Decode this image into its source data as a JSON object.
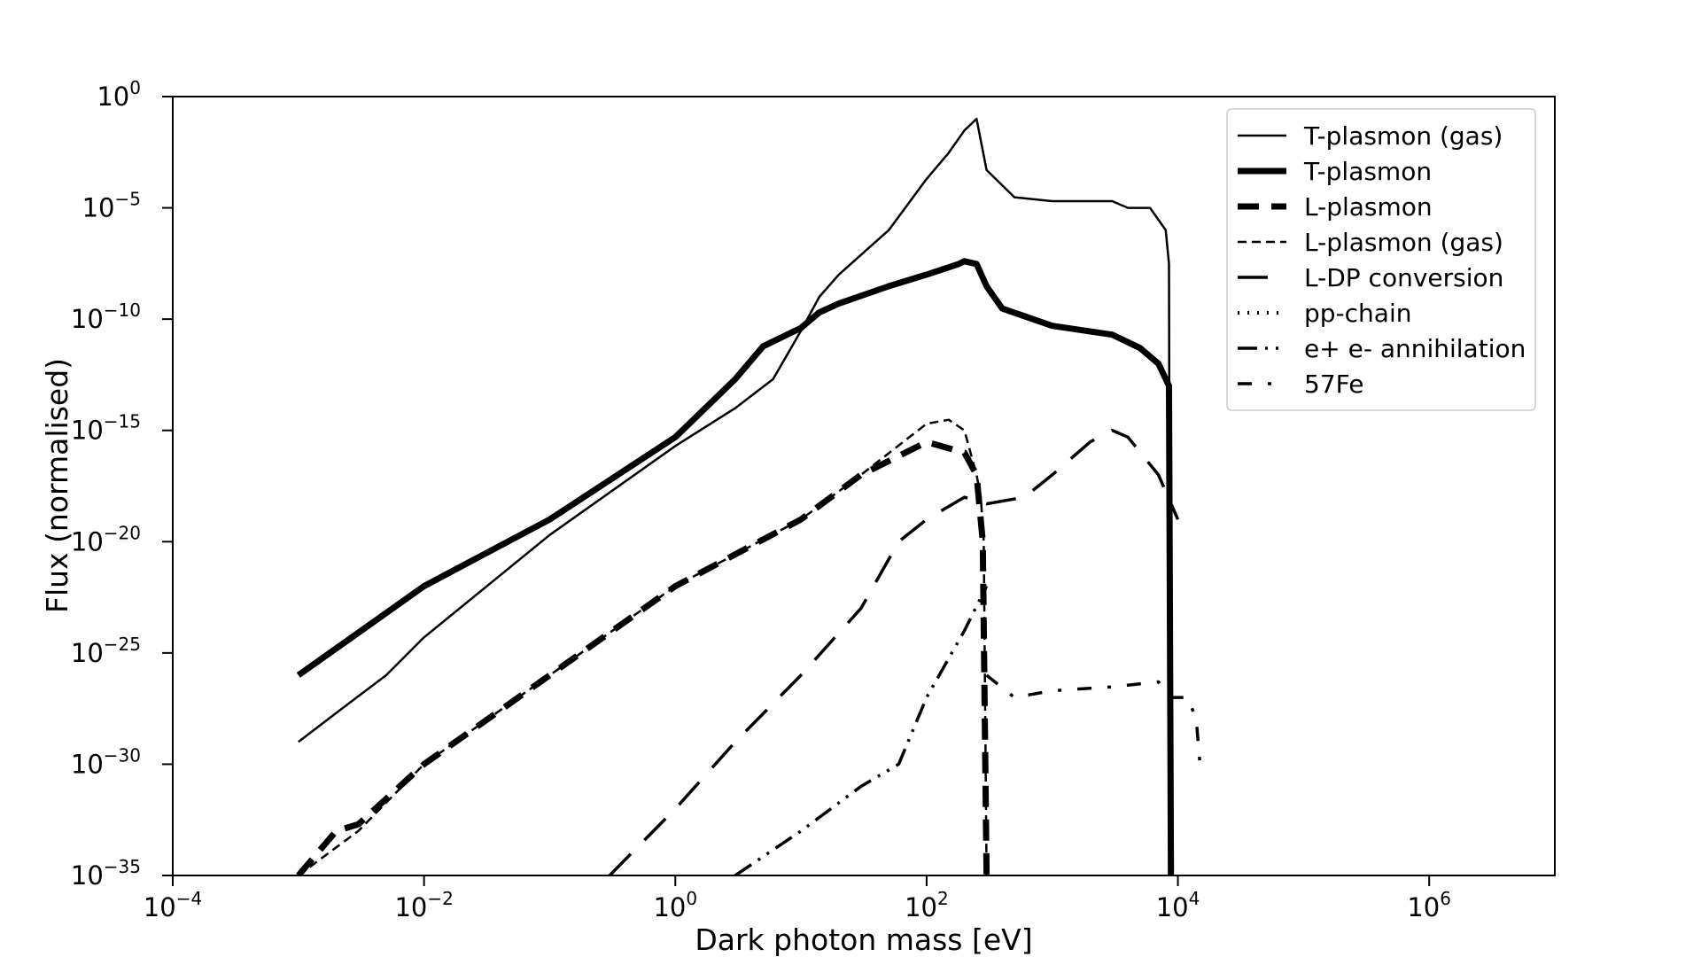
{
  "chart_data": {
    "type": "line",
    "xlabel": "Dark photon mass [eV]",
    "ylabel": "Flux (normalised)",
    "xscale": "log",
    "yscale": "log",
    "xlim": [
      0.0001,
      10000000
    ],
    "ylim": [
      1e-35,
      1
    ],
    "x_ticks": [
      {
        "base": "10",
        "exp": "−4",
        "value": 0.0001
      },
      {
        "base": "10",
        "exp": "−2",
        "value": 0.01
      },
      {
        "base": "10",
        "exp": "0",
        "value": 1
      },
      {
        "base": "10",
        "exp": "2",
        "value": 100
      },
      {
        "base": "10",
        "exp": "4",
        "value": 10000
      },
      {
        "base": "10",
        "exp": "6",
        "value": 1000000
      }
    ],
    "y_ticks": [
      {
        "base": "10",
        "exp": "0",
        "value": 1
      },
      {
        "base": "10",
        "exp": "−5",
        "value": 1e-05
      },
      {
        "base": "10",
        "exp": "−10",
        "value": 1e-10
      },
      {
        "base": "10",
        "exp": "−15",
        "value": 1e-15
      },
      {
        "base": "10",
        "exp": "−20",
        "value": 1e-20
      },
      {
        "base": "10",
        "exp": "−25",
        "value": 1e-25
      },
      {
        "base": "10",
        "exp": "−30",
        "value": 1e-30
      },
      {
        "base": "10",
        "exp": "−35",
        "value": 1e-35
      }
    ],
    "legend_position": "top-right",
    "grid": false,
    "series": [
      {
        "name": "T-plasmon (gas)",
        "color": "#000000",
        "line_style": "solid",
        "line_width": 2.5,
        "points": [
          [
            0.001,
            1e-29
          ],
          [
            0.002,
            2e-28
          ],
          [
            0.005,
            1e-26
          ],
          [
            0.01,
            5e-25
          ],
          [
            0.1,
            2e-20
          ],
          [
            1,
            2e-16
          ],
          [
            3,
            1e-14
          ],
          [
            6,
            2e-13
          ],
          [
            10,
            3e-11
          ],
          [
            14,
            1e-09
          ],
          [
            20,
            1e-08
          ],
          [
            50,
            1e-06
          ],
          [
            100,
            0.0002
          ],
          [
            150,
            0.003
          ],
          [
            200,
            0.03
          ],
          [
            250,
            0.1
          ],
          [
            300,
            0.0005
          ],
          [
            500,
            3e-05
          ],
          [
            1000,
            2e-05
          ],
          [
            3000,
            2e-05
          ],
          [
            4000,
            1e-05
          ],
          [
            6000,
            1e-05
          ],
          [
            8000,
            1e-06
          ],
          [
            8500,
            3e-08
          ],
          [
            8700,
            1e-35
          ]
        ]
      },
      {
        "name": "T-plasmon",
        "color": "#000000",
        "line_style": "solid",
        "line_width": 7,
        "points": [
          [
            0.001,
            1e-26
          ],
          [
            0.01,
            1e-22
          ],
          [
            0.1,
            1e-19
          ],
          [
            1,
            5e-16
          ],
          [
            3,
            2e-13
          ],
          [
            5,
            6e-12
          ],
          [
            10,
            4e-11
          ],
          [
            14,
            2e-10
          ],
          [
            20,
            5e-10
          ],
          [
            50,
            3e-09
          ],
          [
            100,
            1e-08
          ],
          [
            180,
            3e-08
          ],
          [
            200,
            4e-08
          ],
          [
            250,
            3e-08
          ],
          [
            300,
            3e-09
          ],
          [
            400,
            3e-10
          ],
          [
            1000,
            5e-11
          ],
          [
            3000,
            2e-11
          ],
          [
            5000,
            5e-12
          ],
          [
            7000,
            1e-12
          ],
          [
            8500,
            1e-13
          ],
          [
            8800,
            1e-35
          ]
        ]
      },
      {
        "name": "L-plasmon",
        "color": "#000000",
        "line_style": "dash-thick",
        "line_width": 7,
        "points": [
          [
            0.001,
            1e-35
          ],
          [
            0.002,
            1e-33
          ],
          [
            0.003,
            2e-33
          ],
          [
            0.01,
            1e-30
          ],
          [
            0.1,
            1e-26
          ],
          [
            1,
            1e-22
          ],
          [
            10,
            1e-19
          ],
          [
            30,
            1e-17
          ],
          [
            100,
            3e-16
          ],
          [
            200,
            1e-16
          ],
          [
            250,
            1e-17
          ],
          [
            280,
            1e-20
          ],
          [
            300,
            1e-35
          ]
        ]
      },
      {
        "name": "L-plasmon (gas)",
        "color": "#000000",
        "line_style": "dash-thin",
        "line_width": 2.5,
        "points": [
          [
            0.001,
            1e-35
          ],
          [
            0.003,
            1e-33
          ],
          [
            0.01,
            1e-30
          ],
          [
            0.1,
            1e-26
          ],
          [
            1,
            1e-22
          ],
          [
            10,
            1e-19
          ],
          [
            30,
            1e-17
          ],
          [
            100,
            2e-15
          ],
          [
            150,
            3e-15
          ],
          [
            200,
            1e-15
          ],
          [
            250,
            1e-17
          ],
          [
            270,
            1e-18
          ],
          [
            285,
            1e-20
          ],
          [
            300,
            1e-35
          ]
        ]
      },
      {
        "name": "L-DP conversion",
        "color": "#000000",
        "line_style": "long-dash",
        "line_width": 3.5,
        "points": [
          [
            0.3,
            1e-35
          ],
          [
            1,
            1e-32
          ],
          [
            3,
            1e-29
          ],
          [
            10,
            1e-26
          ],
          [
            30,
            1e-23
          ],
          [
            60,
            1e-20
          ],
          [
            100,
            1e-19
          ],
          [
            200,
            1e-18
          ],
          [
            300,
            5e-19
          ],
          [
            600,
            1e-18
          ],
          [
            1000,
            1e-17
          ],
          [
            2000,
            3e-16
          ],
          [
            3000,
            1e-15
          ],
          [
            4000,
            5e-16
          ],
          [
            7000,
            1e-17
          ],
          [
            10000,
            1e-19
          ]
        ]
      },
      {
        "name": "pp-chain",
        "color": "#000000",
        "line_style": "dotted",
        "line_width": 4,
        "points": []
      },
      {
        "name": "e+ e- annihilation",
        "color": "#000000",
        "line_style": "dash-dot-dot",
        "line_width": 3.5,
        "points": [
          [
            3,
            1e-35
          ],
          [
            10,
            1e-33
          ],
          [
            30,
            1e-31
          ],
          [
            60,
            1e-30
          ],
          [
            100,
            1e-27
          ],
          [
            200,
            1e-24
          ],
          [
            300,
            1e-22
          ]
        ]
      },
      {
        "name": "57Fe",
        "color": "#000000",
        "line_style": "dash-dot-sparse",
        "line_width": 3.5,
        "points": [
          [
            300,
            1e-26
          ],
          [
            500,
            1e-27
          ],
          [
            1000,
            2e-27
          ],
          [
            3000,
            3e-27
          ],
          [
            7000,
            5e-27
          ],
          [
            9000,
            1e-27
          ],
          [
            12000,
            1e-27
          ],
          [
            14000,
            1e-28
          ],
          [
            14500,
            1e-29
          ],
          [
            15000,
            1e-30
          ]
        ]
      }
    ]
  }
}
